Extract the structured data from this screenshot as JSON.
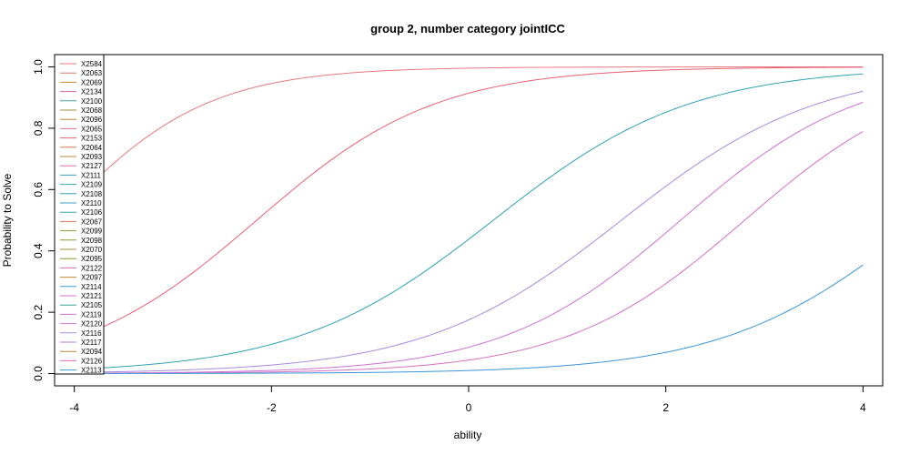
{
  "chart_data": {
    "type": "line",
    "title": "group 2, number category jointICC",
    "xlabel": "ability",
    "ylabel": "Probability to Solve",
    "xlim": [
      -4.2,
      4.2
    ],
    "ylim": [
      -0.04,
      1.04
    ],
    "x_ticks": [
      -4,
      -2,
      0,
      2,
      4
    ],
    "y_ticks": [
      0.0,
      0.2,
      0.4,
      0.6,
      0.8,
      1.0
    ],
    "x_tick_labels": [
      "-4",
      "-2",
      "0",
      "2",
      "4"
    ],
    "y_tick_labels": [
      "0.0",
      "0.2",
      "0.4",
      "0.6",
      "0.8",
      "1.0"
    ],
    "legend_position": "top-left",
    "legend": [
      {
        "name": "X2584",
        "color": "#e7797f"
      },
      {
        "name": "X2063",
        "color": "#df7c63"
      },
      {
        "name": "X2069",
        "color": "#cc8a3a"
      },
      {
        "name": "X2134",
        "color": "#e0639a"
      },
      {
        "name": "X2100",
        "color": "#4a9c9a"
      },
      {
        "name": "X2068",
        "color": "#a08f3a"
      },
      {
        "name": "X2096",
        "color": "#b88b3c"
      },
      {
        "name": "X2065",
        "color": "#e06f8e"
      },
      {
        "name": "X2153",
        "color": "#e85f73"
      },
      {
        "name": "X2064",
        "color": "#d6804a"
      },
      {
        "name": "X2093",
        "color": "#b88b3c"
      },
      {
        "name": "X2127",
        "color": "#e070b0"
      },
      {
        "name": "X2111",
        "color": "#3a9ec0"
      },
      {
        "name": "X2109",
        "color": "#3aa3a0"
      },
      {
        "name": "X2108",
        "color": "#2fa2b0"
      },
      {
        "name": "X2110",
        "color": "#3a9fc6"
      },
      {
        "name": "X2106",
        "color": "#3aa7ac"
      },
      {
        "name": "X2067",
        "color": "#d47a56"
      },
      {
        "name": "X2099",
        "color": "#8c9a3a"
      },
      {
        "name": "X2098",
        "color": "#9a953a"
      },
      {
        "name": "X2070",
        "color": "#b08a3a"
      },
      {
        "name": "X2095",
        "color": "#7fa03a"
      },
      {
        "name": "X2122",
        "color": "#e46ab2"
      },
      {
        "name": "X2097",
        "color": "#c0883c"
      },
      {
        "name": "X2114",
        "color": "#3a98d6"
      },
      {
        "name": "X2121",
        "color": "#d470c4"
      },
      {
        "name": "X2105",
        "color": "#3aa39a"
      },
      {
        "name": "X2119",
        "color": "#cc72d2"
      },
      {
        "name": "X2120",
        "color": "#d07ad0"
      },
      {
        "name": "X2116",
        "color": "#a88ada"
      },
      {
        "name": "X2117",
        "color": "#b47ad8"
      },
      {
        "name": "X2094",
        "color": "#b0883a"
      },
      {
        "name": "X2126",
        "color": "#e06cb4"
      },
      {
        "name": "X2113",
        "color": "#3a96d4"
      }
    ],
    "series": [
      {
        "color": "#e7797f",
        "difficulty": -4.2,
        "discrimination": 1.3
      },
      {
        "color": "#e85f73",
        "difficulty": -2.15,
        "discrimination": 1.1
      },
      {
        "color": "#2fa2b0",
        "difficulty": 0.25,
        "discrimination": 1.0
      },
      {
        "color": "#a88ada",
        "difficulty": 1.55,
        "discrimination": 1.0
      },
      {
        "color": "#cc72d2",
        "difficulty": 2.15,
        "discrimination": 1.1
      },
      {
        "color": "#d470c4",
        "difficulty": 2.8,
        "discrimination": 1.1
      },
      {
        "color": "#3a96d4",
        "difficulty": 4.6,
        "discrimination": 1.0
      }
    ]
  }
}
